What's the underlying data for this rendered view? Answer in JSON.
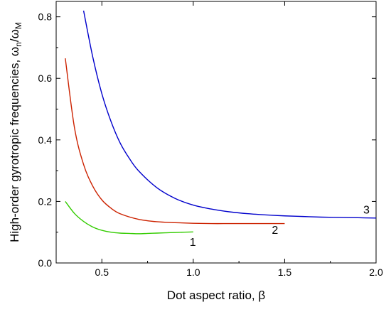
{
  "chart_data": {
    "type": "line",
    "xlabel": "Dot aspect ratio, β",
    "ylabel": "High-order gyrotropic frequencies, ω",
    "ylabel_sub1": "n",
    "ylabel_mid": "/ω",
    "ylabel_sub2": "M",
    "xlim": [
      0.25,
      2.0
    ],
    "ylim": [
      0.0,
      0.85
    ],
    "x_ticks": [
      {
        "value": 0.5,
        "label": "0.5"
      },
      {
        "value": 1.0,
        "label": "1.0"
      },
      {
        "value": 1.5,
        "label": "1.5"
      },
      {
        "value": 2.0,
        "label": "2.0"
      }
    ],
    "y_ticks": [
      {
        "value": 0.0,
        "label": "0.0"
      },
      {
        "value": 0.2,
        "label": "0.2"
      },
      {
        "value": 0.4,
        "label": "0.4"
      },
      {
        "value": 0.6,
        "label": "0.6"
      },
      {
        "value": 0.8,
        "label": "0.8"
      }
    ],
    "grid": false,
    "series": [
      {
        "label": "1",
        "color": "#33cc00",
        "x": [
          0.3,
          0.35,
          0.4,
          0.45,
          0.5,
          0.55,
          0.6,
          0.65,
          0.7,
          0.75,
          0.8,
          0.85,
          0.9,
          0.95,
          1.0
        ],
        "y": [
          0.2,
          0.161,
          0.135,
          0.117,
          0.106,
          0.1,
          0.097,
          0.096,
          0.095,
          0.096,
          0.097,
          0.098,
          0.099,
          0.1,
          0.101
        ]
      },
      {
        "label": "2",
        "color": "#cc2200",
        "x": [
          0.3,
          0.35,
          0.4,
          0.45,
          0.5,
          0.55,
          0.6,
          0.7,
          0.8,
          0.9,
          1.0,
          1.1,
          1.2,
          1.3,
          1.4,
          1.5
        ],
        "y": [
          0.665,
          0.44,
          0.32,
          0.25,
          0.205,
          0.178,
          0.16,
          0.142,
          0.134,
          0.131,
          0.129,
          0.128,
          0.128,
          0.128,
          0.128,
          0.128
        ]
      },
      {
        "label": "3",
        "color": "#0000cc",
        "x": [
          0.4,
          0.45,
          0.5,
          0.55,
          0.6,
          0.65,
          0.7,
          0.8,
          0.9,
          1.0,
          1.1,
          1.2,
          1.3,
          1.4,
          1.5,
          1.6,
          1.7,
          1.8,
          1.9,
          2.0
        ],
        "y": [
          0.82,
          0.67,
          0.55,
          0.46,
          0.39,
          0.34,
          0.3,
          0.245,
          0.21,
          0.188,
          0.175,
          0.166,
          0.16,
          0.156,
          0.153,
          0.151,
          0.149,
          0.148,
          0.147,
          0.146
        ]
      }
    ]
  }
}
